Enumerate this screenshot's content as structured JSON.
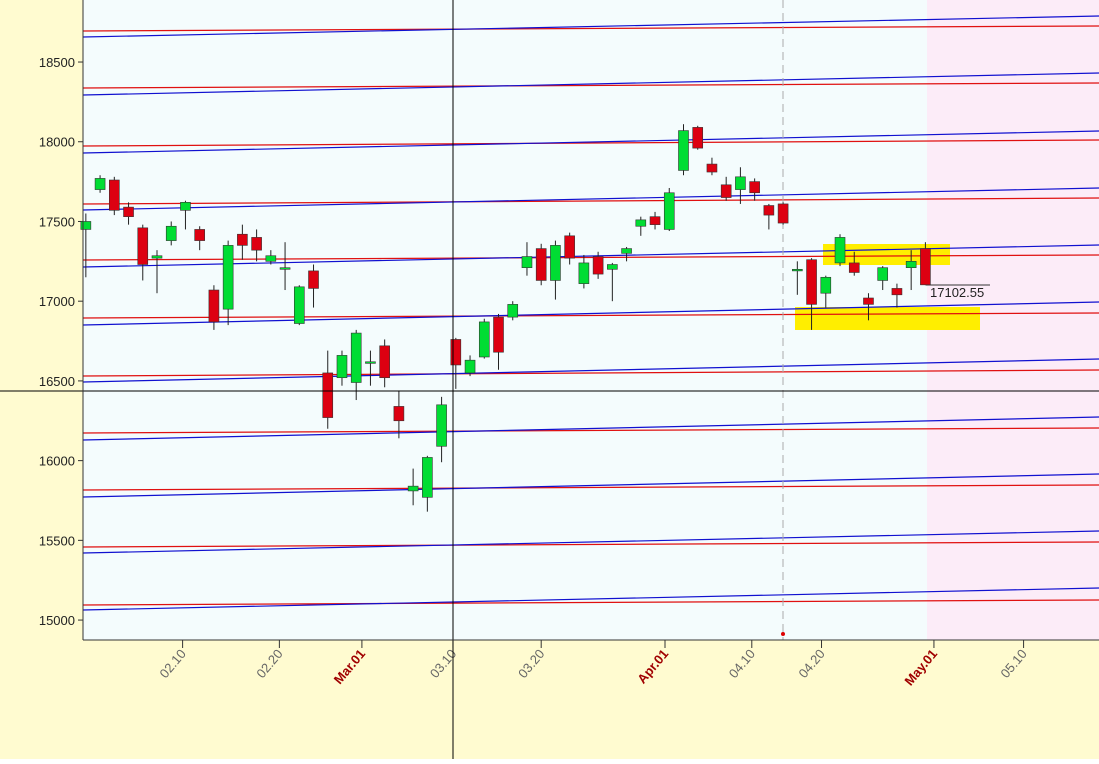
{
  "chart_data": {
    "type": "candlestick",
    "categories": [
      null,
      null,
      null,
      null,
      null,
      null,
      null,
      null,
      null,
      null,
      null,
      null,
      null,
      null,
      null,
      null,
      null,
      null,
      null,
      null,
      null,
      null,
      null,
      null,
      null,
      null,
      null,
      null,
      null,
      null,
      null,
      null,
      null,
      null,
      null,
      null,
      null,
      null,
      null,
      null,
      null,
      null,
      null,
      null,
      null,
      null,
      null,
      null,
      null,
      null,
      null,
      null,
      null,
      null,
      null,
      null,
      null,
      null,
      null,
      null
    ],
    "open": [
      17450,
      17700,
      17760,
      17590,
      17460,
      17270,
      17380,
      17570,
      17450,
      17070,
      16950,
      17420,
      17400,
      17250,
      17200,
      16860,
      17190,
      16550,
      16520,
      16490,
      16610,
      16720,
      16340,
      15810,
      15770,
      16090,
      16760,
      16550,
      16650,
      16900,
      16900,
      17210,
      17330,
      17130,
      17410,
      17110,
      17280,
      17200,
      17300,
      17470,
      17530,
      17450,
      17820,
      18090,
      17860,
      17730,
      17700,
      17750,
      17600,
      17610,
      17190,
      17260,
      17050,
      17240,
      17240,
      17020,
      17130,
      17080,
      17210,
      17330
    ],
    "high": [
      17550,
      17790,
      17780,
      17620,
      17480,
      17320,
      17500,
      17630,
      17470,
      17100,
      17380,
      17480,
      17450,
      17320,
      17370,
      17100,
      17230,
      16690,
      16690,
      16820,
      16690,
      16760,
      16440,
      15950,
      16030,
      16400,
      16770,
      16660,
      16890,
      16920,
      17000,
      17370,
      17360,
      17380,
      17430,
      17290,
      17310,
      17240,
      17340,
      17530,
      17560,
      17710,
      18110,
      18100,
      17900,
      17780,
      17840,
      17770,
      17610,
      17620,
      17250,
      17270,
      17160,
      17420,
      17310,
      17050,
      17220,
      17110,
      17320,
      17370
    ],
    "low": [
      17150,
      17680,
      17540,
      17480,
      17130,
      17050,
      17350,
      17450,
      17320,
      16820,
      16850,
      17260,
      17250,
      17230,
      17070,
      16850,
      16960,
      16200,
      16470,
      16380,
      16470,
      16460,
      16140,
      15720,
      15680,
      15990,
      16450,
      16530,
      16640,
      16570,
      16880,
      17160,
      17100,
      17010,
      17230,
      17080,
      17140,
      17000,
      17250,
      17410,
      17450,
      17440,
      17790,
      17950,
      17790,
      17630,
      17610,
      17630,
      17450,
      17480,
      17040,
      16820,
      16960,
      17220,
      17160,
      16880,
      17070,
      16960,
      17070,
      17100
    ],
    "close": [
      17500,
      17770,
      17570,
      17530,
      17230,
      17285,
      17470,
      17620,
      17380,
      16870,
      17350,
      17350,
      17320,
      17285,
      17210,
      17090,
      17080,
      16270,
      16660,
      16800,
      16620,
      16520,
      16250,
      15840,
      16020,
      16350,
      16600,
      16630,
      16870,
      16680,
      16980,
      17280,
      17130,
      17350,
      17270,
      17240,
      17170,
      17230,
      17330,
      17510,
      17480,
      17680,
      18070,
      17960,
      17810,
      17650,
      17780,
      17680,
      17540,
      17490,
      17200,
      16980,
      17150,
      17400,
      17180,
      16980,
      17210,
      17040,
      17250,
      17102.55
    ],
    "up_color": "#00dd33",
    "down_color": "#dd0011",
    "xlim": [
      -0.2,
      71.2
    ],
    "xticks": [
      {
        "value": 6.8,
        "label": "02.10",
        "color": "#666666"
      },
      {
        "value": 13.6,
        "label": "02.20",
        "color": "#666666"
      },
      {
        "value": 19.4,
        "label": "Mar.01",
        "color": "#a00000"
      },
      {
        "value": 25.8,
        "label": "03.10",
        "color": "#666666"
      },
      {
        "value": 32,
        "label": "03.20",
        "color": "#666666"
      },
      {
        "value": 40.7,
        "label": "Apr.01",
        "color": "#a00000"
      },
      {
        "value": 46.8,
        "label": "04.10",
        "color": "#666666"
      },
      {
        "value": 51.7,
        "label": "04.20",
        "color": "#666666"
      },
      {
        "value": 59.6,
        "label": "May.01",
        "color": "#a00000"
      },
      {
        "value": 65.9,
        "label": "05.10",
        "color": "#666666"
      }
    ],
    "ylim": [
      14875,
      18889
    ],
    "yticks": [
      15000,
      15500,
      16000,
      16500,
      17000,
      17500,
      18000,
      18500
    ]
  }
}
